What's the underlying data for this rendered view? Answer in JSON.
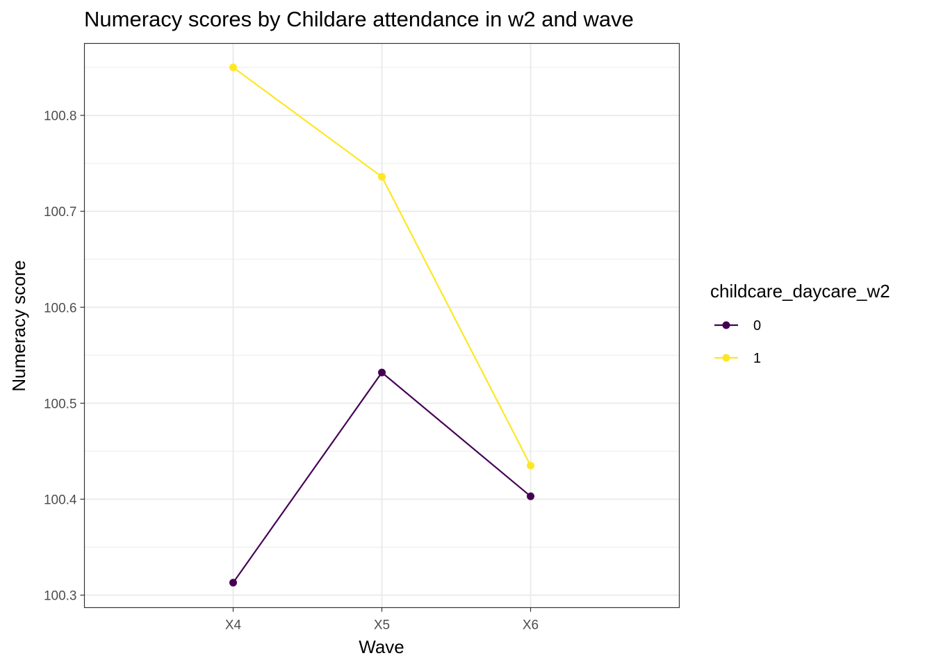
{
  "chart_data": {
    "type": "line",
    "title": "Numeracy scores by Childare attendance in w2 and wave",
    "xlabel": "Wave",
    "ylabel": "Numeracy score",
    "categories": [
      "X4",
      "X5",
      "X6"
    ],
    "ylim": [
      100.287,
      100.875
    ],
    "yticks": [
      100.3,
      100.4,
      100.5,
      100.6,
      100.7,
      100.8
    ],
    "ytick_labels": [
      "100.3",
      "100.4",
      "100.5",
      "100.6",
      "100.7",
      "100.8"
    ],
    "grid": true,
    "legend": {
      "title": "childcare_daycare_w2",
      "position": "right"
    },
    "series": [
      {
        "name": "0",
        "color": "#440154",
        "values": [
          100.313,
          100.532,
          100.403
        ]
      },
      {
        "name": "1",
        "color": "#fde725",
        "values": [
          100.85,
          100.736,
          100.435
        ]
      }
    ]
  }
}
